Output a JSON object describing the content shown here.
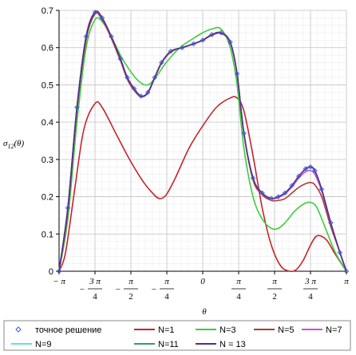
{
  "chart_data": {
    "type": "line",
    "xlabel": "θ",
    "ylabel": "σ12(θ)",
    "ylabel_main": "σ",
    "ylabel_sub": "12",
    "ylabel_arg": "(θ)",
    "xlim": [
      -3.1416,
      3.1416
    ],
    "ylim": [
      0,
      0.7
    ],
    "grid": true,
    "legend_position": "bottom",
    "y_ticks": [
      {
        "v": 0,
        "label": "0"
      },
      {
        "v": 0.1,
        "label": "0.1"
      },
      {
        "v": 0.2,
        "label": "0.2"
      },
      {
        "v": 0.3,
        "label": "0.3"
      },
      {
        "v": 0.4,
        "label": "0.4"
      },
      {
        "v": 0.5,
        "label": "0.5"
      },
      {
        "v": 0.6,
        "label": "0.6"
      },
      {
        "v": 0.7,
        "label": "0.7"
      }
    ],
    "x_ticks": [
      {
        "v": -3.1416,
        "sign": "−",
        "num": "π",
        "den": ""
      },
      {
        "v": -2.3562,
        "sign": "−",
        "num": "3 π",
        "den": "4"
      },
      {
        "v": -1.5708,
        "sign": "−",
        "num": "π",
        "den": "2"
      },
      {
        "v": -0.7854,
        "sign": "−",
        "num": "π",
        "den": "4"
      },
      {
        "v": 0,
        "sign": "",
        "num": "0",
        "den": ""
      },
      {
        "v": 0.7854,
        "sign": "",
        "num": "π",
        "den": "4"
      },
      {
        "v": 1.5708,
        "sign": "",
        "num": "π",
        "den": "2"
      },
      {
        "v": 2.3562,
        "sign": "",
        "num": "3 π",
        "den": "4"
      },
      {
        "v": 3.1416,
        "sign": "",
        "num": "π",
        "den": ""
      }
    ],
    "series": [
      {
        "name": "точное решение",
        "color": "#3b5bd6",
        "style": "diamond-markers",
        "x": [
          -3.1416,
          -2.95,
          -2.75,
          -2.55,
          -2.356,
          -2.2,
          -2.0,
          -1.8,
          -1.65,
          -1.5,
          -1.35,
          -1.2,
          -1.05,
          -0.9,
          -0.7,
          -0.45,
          -0.2,
          0,
          0.2,
          0.4,
          0.6,
          0.75,
          0.9,
          1.1,
          1.3,
          1.5,
          1.65,
          1.8,
          1.95,
          2.1,
          2.25,
          2.356,
          2.45,
          2.6,
          2.8,
          3.0,
          3.1416
        ],
        "y": [
          0,
          0.17,
          0.44,
          0.63,
          0.695,
          0.68,
          0.63,
          0.57,
          0.52,
          0.49,
          0.47,
          0.48,
          0.52,
          0.56,
          0.59,
          0.6,
          0.61,
          0.62,
          0.635,
          0.64,
          0.615,
          0.53,
          0.37,
          0.25,
          0.21,
          0.195,
          0.2,
          0.21,
          0.23,
          0.255,
          0.275,
          0.28,
          0.27,
          0.22,
          0.13,
          0.05,
          0
        ]
      },
      {
        "name": "N=1",
        "color": "#c8232c",
        "style": "line",
        "x": [
          -3.1416,
          -3.0,
          -2.8,
          -2.6,
          -2.356,
          -2.2,
          -1.9,
          -1.6,
          -1.3,
          -1.1,
          -0.95,
          -0.8,
          -0.6,
          -0.3,
          0,
          0.3,
          0.6,
          0.75,
          0.9,
          1.1,
          1.3,
          1.5,
          1.7,
          1.9,
          2.05,
          2.2,
          2.356,
          2.5,
          2.7,
          2.9,
          3.1416
        ],
        "y": [
          0,
          0.05,
          0.22,
          0.38,
          0.45,
          0.44,
          0.37,
          0.3,
          0.24,
          0.21,
          0.195,
          0.205,
          0.25,
          0.33,
          0.39,
          0.44,
          0.465,
          0.465,
          0.43,
          0.31,
          0.17,
          0.07,
          0.015,
          0.0,
          0.005,
          0.03,
          0.07,
          0.095,
          0.085,
          0.045,
          0
        ]
      },
      {
        "name": "N=3",
        "color": "#3ccd3c",
        "style": "line",
        "x": [
          -3.1416,
          -2.95,
          -2.75,
          -2.55,
          -2.356,
          -2.2,
          -2.0,
          -1.8,
          -1.6,
          -1.4,
          -1.2,
          -1.0,
          -0.8,
          -0.5,
          -0.2,
          0,
          0.2,
          0.4,
          0.6,
          0.75,
          0.9,
          1.1,
          1.3,
          1.5,
          1.65,
          1.8,
          2.0,
          2.2,
          2.356,
          2.5,
          2.7,
          2.9,
          3.1416
        ],
        "y": [
          0,
          0.14,
          0.4,
          0.6,
          0.675,
          0.67,
          0.63,
          0.58,
          0.54,
          0.51,
          0.5,
          0.525,
          0.56,
          0.6,
          0.625,
          0.64,
          0.65,
          0.65,
          0.6,
          0.5,
          0.33,
          0.2,
          0.14,
          0.115,
          0.115,
          0.13,
          0.16,
          0.18,
          0.185,
          0.17,
          0.11,
          0.05,
          0
        ]
      },
      {
        "name": "N=5",
        "color": "#b03a3a",
        "style": "line",
        "x": [
          -3.1416,
          -2.95,
          -2.75,
          -2.55,
          -2.356,
          -2.2,
          -2.0,
          -1.8,
          -1.65,
          -1.5,
          -1.35,
          -1.2,
          -1.05,
          -0.9,
          -0.7,
          -0.45,
          -0.2,
          0,
          0.2,
          0.4,
          0.6,
          0.75,
          0.9,
          1.1,
          1.3,
          1.5,
          1.65,
          1.8,
          1.95,
          2.1,
          2.25,
          2.356,
          2.45,
          2.6,
          2.8,
          3.0,
          3.1416
        ],
        "y": [
          0,
          0.16,
          0.43,
          0.62,
          0.69,
          0.675,
          0.625,
          0.565,
          0.515,
          0.485,
          0.468,
          0.478,
          0.518,
          0.558,
          0.588,
          0.6,
          0.61,
          0.62,
          0.633,
          0.638,
          0.613,
          0.53,
          0.37,
          0.245,
          0.205,
          0.19,
          0.19,
          0.195,
          0.21,
          0.225,
          0.235,
          0.238,
          0.232,
          0.2,
          0.12,
          0.05,
          0
        ]
      },
      {
        "name": "N=7",
        "color": "#d24bd2",
        "style": "line",
        "x": [
          -3.1416,
          -2.95,
          -2.75,
          -2.55,
          -2.356,
          -2.2,
          -2.0,
          -1.8,
          -1.65,
          -1.5,
          -1.35,
          -1.2,
          -1.05,
          -0.9,
          -0.7,
          -0.45,
          -0.2,
          0,
          0.2,
          0.4,
          0.6,
          0.75,
          0.9,
          1.1,
          1.3,
          1.5,
          1.65,
          1.8,
          1.95,
          2.1,
          2.25,
          2.356,
          2.45,
          2.6,
          2.8,
          3.0,
          3.1416
        ],
        "y": [
          0,
          0.17,
          0.44,
          0.63,
          0.694,
          0.679,
          0.629,
          0.569,
          0.519,
          0.489,
          0.469,
          0.479,
          0.519,
          0.559,
          0.589,
          0.6,
          0.61,
          0.62,
          0.634,
          0.639,
          0.614,
          0.53,
          0.37,
          0.25,
          0.208,
          0.195,
          0.198,
          0.208,
          0.226,
          0.25,
          0.267,
          0.27,
          0.26,
          0.215,
          0.128,
          0.05,
          0
        ]
      },
      {
        "name": "N=9",
        "color": "#5fe0e8",
        "style": "line",
        "x": [
          -3.1416,
          -2.95,
          -2.75,
          -2.55,
          -2.356,
          -2.2,
          -2.0,
          -1.8,
          -1.65,
          -1.5,
          -1.35,
          -1.2,
          -1.05,
          -0.9,
          -0.7,
          -0.45,
          -0.2,
          0,
          0.2,
          0.4,
          0.6,
          0.75,
          0.9,
          1.1,
          1.3,
          1.5,
          1.65,
          1.8,
          1.95,
          2.1,
          2.25,
          2.356,
          2.45,
          2.6,
          2.8,
          3.0,
          3.1416
        ],
        "y": [
          0,
          0.17,
          0.44,
          0.63,
          0.695,
          0.68,
          0.63,
          0.57,
          0.52,
          0.49,
          0.47,
          0.48,
          0.52,
          0.56,
          0.59,
          0.6,
          0.61,
          0.62,
          0.635,
          0.64,
          0.615,
          0.53,
          0.37,
          0.25,
          0.21,
          0.196,
          0.2,
          0.21,
          0.229,
          0.254,
          0.273,
          0.278,
          0.268,
          0.219,
          0.13,
          0.05,
          0
        ]
      },
      {
        "name": "N=11",
        "color": "#2e9c7a",
        "style": "line",
        "x": [
          -3.1416,
          -2.95,
          -2.75,
          -2.55,
          -2.356,
          -2.2,
          -2.0,
          -1.8,
          -1.65,
          -1.5,
          -1.35,
          -1.2,
          -1.05,
          -0.9,
          -0.7,
          -0.45,
          -0.2,
          0,
          0.2,
          0.4,
          0.6,
          0.75,
          0.9,
          1.1,
          1.3,
          1.5,
          1.65,
          1.8,
          1.95,
          2.1,
          2.25,
          2.356,
          2.45,
          2.6,
          2.8,
          3.0,
          3.1416
        ],
        "y": [
          0,
          0.17,
          0.44,
          0.63,
          0.695,
          0.68,
          0.63,
          0.57,
          0.52,
          0.49,
          0.47,
          0.48,
          0.52,
          0.56,
          0.59,
          0.6,
          0.61,
          0.62,
          0.635,
          0.64,
          0.615,
          0.53,
          0.37,
          0.25,
          0.21,
          0.195,
          0.2,
          0.21,
          0.23,
          0.255,
          0.275,
          0.28,
          0.27,
          0.22,
          0.13,
          0.05,
          0
        ]
      },
      {
        "name": "N = 13",
        "color": "#5a2a8c",
        "style": "line",
        "x": [
          -3.1416,
          -2.95,
          -2.75,
          -2.55,
          -2.356,
          -2.2,
          -2.0,
          -1.8,
          -1.65,
          -1.5,
          -1.35,
          -1.2,
          -1.05,
          -0.9,
          -0.7,
          -0.45,
          -0.2,
          0,
          0.2,
          0.4,
          0.6,
          0.75,
          0.9,
          1.1,
          1.3,
          1.5,
          1.65,
          1.8,
          1.95,
          2.1,
          2.25,
          2.356,
          2.45,
          2.6,
          2.8,
          3.0,
          3.1416
        ],
        "y": [
          0,
          0.17,
          0.44,
          0.63,
          0.695,
          0.68,
          0.63,
          0.57,
          0.52,
          0.49,
          0.47,
          0.48,
          0.52,
          0.56,
          0.59,
          0.6,
          0.61,
          0.62,
          0.635,
          0.64,
          0.615,
          0.53,
          0.37,
          0.25,
          0.21,
          0.195,
          0.2,
          0.21,
          0.23,
          0.255,
          0.275,
          0.28,
          0.27,
          0.22,
          0.13,
          0.05,
          0
        ]
      }
    ]
  }
}
